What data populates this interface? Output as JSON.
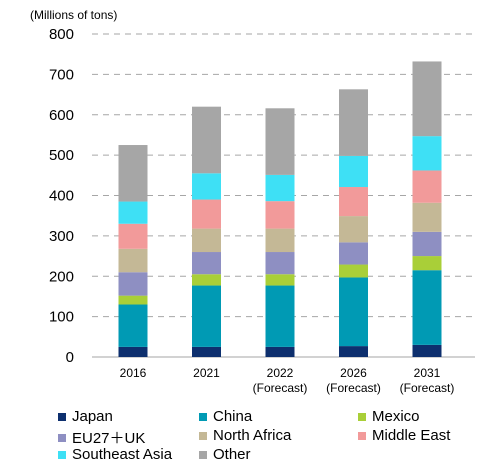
{
  "chart_data": {
    "type": "bar",
    "stacked": true,
    "unit_label": "(Millions of tons)",
    "categories": [
      {
        "line1": "2016",
        "line2": ""
      },
      {
        "line1": "2021",
        "line2": ""
      },
      {
        "line1": "2022",
        "line2": "(Forecast)"
      },
      {
        "line1": "2026",
        "line2": "(Forecast)"
      },
      {
        "line1": "2031",
        "line2": "(Forecast)"
      }
    ],
    "ylim": [
      0,
      800
    ],
    "yticks": [
      0,
      100,
      200,
      300,
      400,
      500,
      600,
      700,
      800
    ],
    "grid": true,
    "legend_position": "bottom",
    "series": [
      {
        "name": "Japan",
        "color": "#0d2f6e",
        "values": [
          25,
          25,
          25,
          27,
          30
        ]
      },
      {
        "name": "China",
        "color": "#009ab4",
        "values": [
          105,
          152,
          152,
          170,
          185
        ]
      },
      {
        "name": "Mexico",
        "color": "#a9cf38",
        "values": [
          22,
          28,
          28,
          32,
          35
        ]
      },
      {
        "name": "EU27＋UK",
        "color": "#8e8fc2",
        "values": [
          58,
          55,
          55,
          55,
          60
        ]
      },
      {
        "name": "North Africa",
        "color": "#c4b896",
        "values": [
          58,
          58,
          58,
          65,
          72
        ]
      },
      {
        "name": "Middle East",
        "color": "#f29a9a",
        "values": [
          62,
          72,
          68,
          72,
          80
        ]
      },
      {
        "name": "Southeast Asia",
        "color": "#3ee0f5",
        "values": [
          55,
          65,
          65,
          77,
          85
        ]
      },
      {
        "name": "Other",
        "color": "#a6a6a6",
        "values": [
          140,
          165,
          165,
          165,
          185
        ]
      }
    ]
  }
}
